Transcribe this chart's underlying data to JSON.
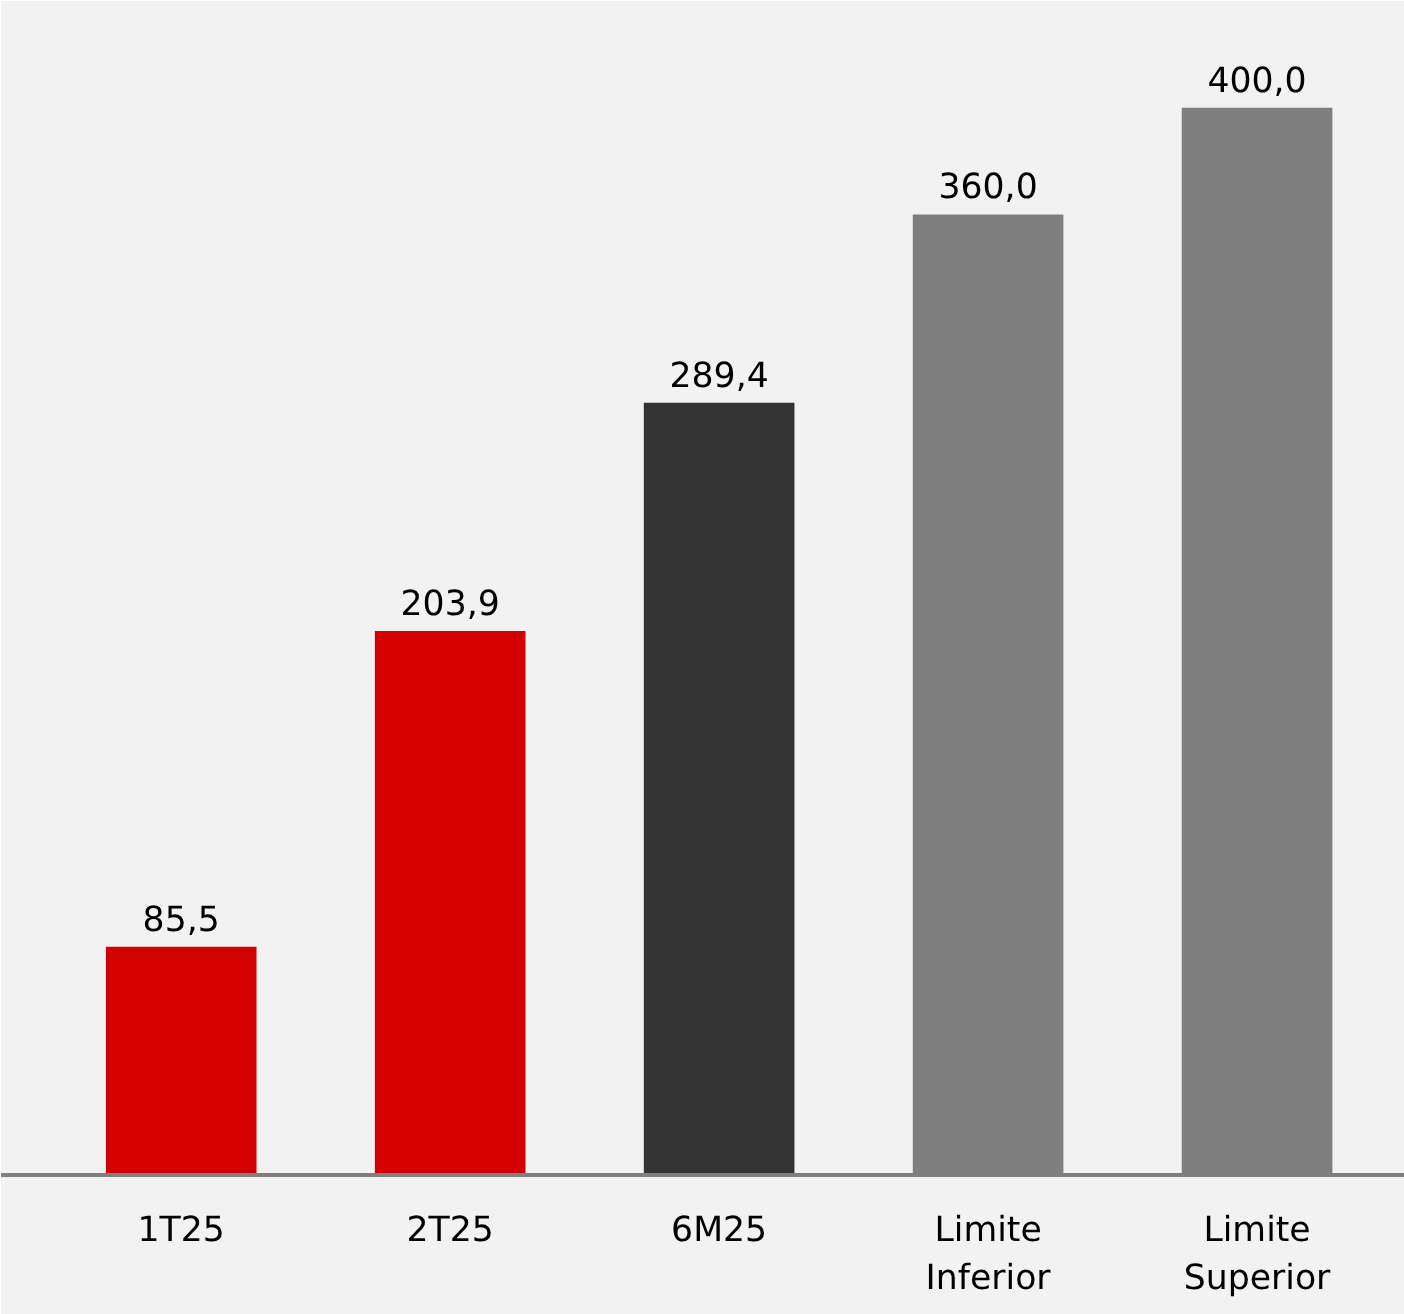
{
  "chart_data": {
    "type": "bar",
    "categories": [
      "1T25",
      "2T25",
      "6M25",
      "Limite Inferior",
      "Limite Superior"
    ],
    "values": [
      85.5,
      203.9,
      289.4,
      360.0,
      400.0
    ],
    "colors": [
      "#d20000",
      "#d20000",
      "#333333",
      "#7f7f7f",
      "#7f7f7f"
    ],
    "value_labels": [
      "85,5",
      "203,9",
      "289,4",
      "360,0",
      "400,0"
    ]
  }
}
